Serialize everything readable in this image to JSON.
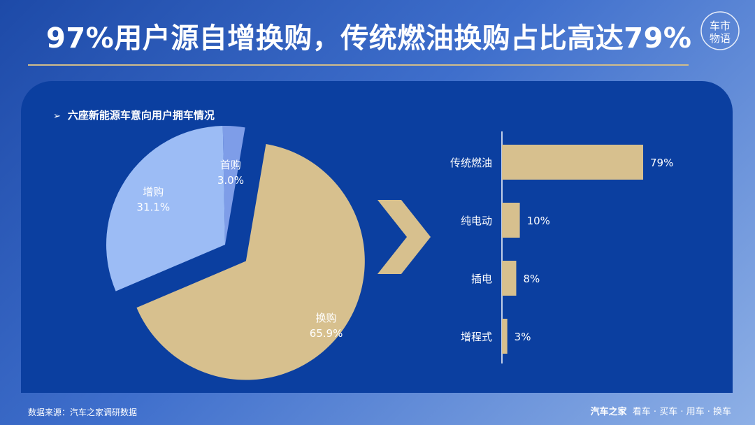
{
  "header": {
    "title": "97%用户源自增换购，传统燃油换购占比高达79%",
    "logo_text": [
      "车市",
      "物语"
    ]
  },
  "panel": {
    "subtitle": "六座新能源车意向用户拥车情况"
  },
  "colors": {
    "gold": "#d7c08e",
    "light_blue": "#9cbcf5",
    "mid_blue": "#7e9de8",
    "panel": "#0b3fa0"
  },
  "chart_data": [
    {
      "type": "pie",
      "slices": [
        {
          "label": "换购",
          "value": 65.9,
          "display": "65.9%"
        },
        {
          "label": "增购",
          "value": 31.1,
          "display": "31.1%"
        },
        {
          "label": "首购",
          "value": 3.0,
          "display": "3.0%"
        }
      ]
    },
    {
      "type": "bar",
      "orientation": "horizontal",
      "categories": [
        "传统燃油",
        "纯电动",
        "插电",
        "增程式"
      ],
      "values": [
        79,
        10,
        8,
        3
      ],
      "value_labels": [
        "79%",
        "10%",
        "8%",
        "3%"
      ],
      "xlim": [
        0,
        79
      ]
    }
  ],
  "footer": {
    "source": "数据来源：汽车之家调研数据",
    "brand": "汽车之家",
    "tagline": "看车 · 买车 · 用车 · 换车"
  }
}
